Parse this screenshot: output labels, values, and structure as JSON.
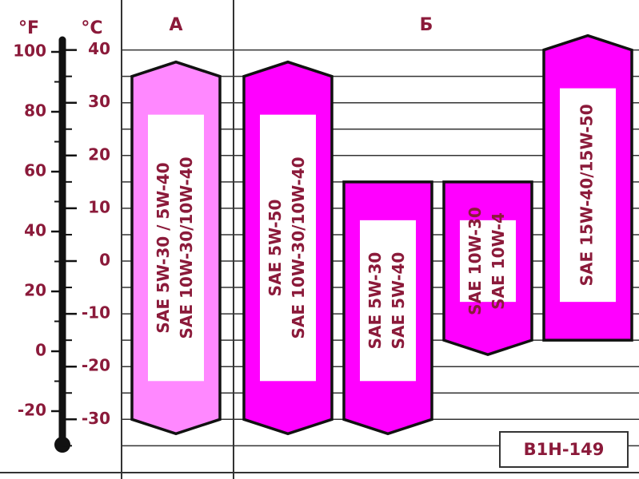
{
  "header": {
    "group_a": "А",
    "group_b": "Б"
  },
  "scales": {
    "fahrenheit": {
      "unit": "°F",
      "ticks": [
        100,
        80,
        60,
        40,
        20,
        0,
        -20
      ]
    },
    "celsius": {
      "unit": "°C",
      "ticks": [
        40,
        30,
        20,
        10,
        0,
        -10,
        -20,
        -30
      ]
    }
  },
  "oils": [
    {
      "lines": [
        "SAE  5W-30  / 5W-40",
        "SAE 10W-30/10W-40"
      ],
      "min": -30,
      "max": 35,
      "pointed": [
        "top",
        "bottom"
      ],
      "color": "#ff88ff"
    },
    {
      "lines": [
        "SAE   5W-50",
        "SAE 10W-30/10W-40"
      ],
      "min": -30,
      "max": 35,
      "pointed": [
        "top",
        "bottom"
      ],
      "color": "#ff00ff"
    },
    {
      "lines": [
        "SAE 5W-30",
        "SAE 5W-40"
      ],
      "min": -30,
      "max": 15,
      "pointed": [
        "bottom"
      ],
      "color": "#ff00ff"
    },
    {
      "lines": [
        "SAE 10W-30",
        "SAE 10W-4"
      ],
      "min": -15,
      "max": 15,
      "pointed": [
        "bottom"
      ],
      "color": "#ff00ff"
    },
    {
      "lines": [
        "SAE 15W-40/15W-50"
      ],
      "min": -15,
      "max": 40,
      "pointed": [
        "top"
      ],
      "color": "#ff00ff"
    }
  ],
  "code": "B1H-149"
}
